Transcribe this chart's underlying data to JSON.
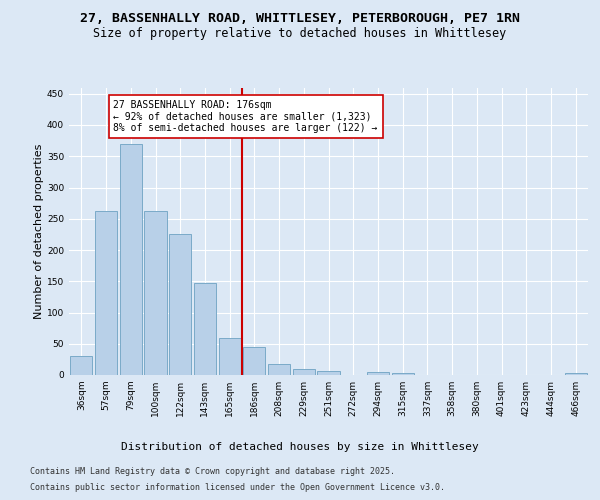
{
  "title_line1": "27, BASSENHALLY ROAD, WHITTLESEY, PETERBOROUGH, PE7 1RN",
  "title_line2": "Size of property relative to detached houses in Whittlesey",
  "xlabel": "Distribution of detached houses by size in Whittlesey",
  "ylabel": "Number of detached properties",
  "categories": [
    "36sqm",
    "57sqm",
    "79sqm",
    "100sqm",
    "122sqm",
    "143sqm",
    "165sqm",
    "186sqm",
    "208sqm",
    "229sqm",
    "251sqm",
    "272sqm",
    "294sqm",
    "315sqm",
    "337sqm",
    "358sqm",
    "380sqm",
    "401sqm",
    "423sqm",
    "444sqm",
    "466sqm"
  ],
  "values": [
    30,
    262,
    370,
    262,
    226,
    148,
    60,
    45,
    18,
    10,
    7,
    0,
    5,
    3,
    0,
    0,
    0,
    0,
    0,
    0,
    4
  ],
  "bar_color": "#b8d0e8",
  "bar_edge_color": "#7aaac8",
  "vline_x_pos": 6.5,
  "vline_color": "#cc0000",
  "annotation_text": "27 BASSENHALLY ROAD: 176sqm\n← 92% of detached houses are smaller (1,323)\n8% of semi-detached houses are larger (122) →",
  "annotation_box_color": "#ffffff",
  "annotation_box_edge_color": "#cc0000",
  "ylim": [
    0,
    460
  ],
  "yticks": [
    0,
    50,
    100,
    150,
    200,
    250,
    300,
    350,
    400,
    450
  ],
  "background_color": "#dce8f5",
  "plot_bg_color": "#dce8f5",
  "grid_color": "#ffffff",
  "footer_line1": "Contains HM Land Registry data © Crown copyright and database right 2025.",
  "footer_line2": "Contains public sector information licensed under the Open Government Licence v3.0.",
  "title_fontsize": 9.5,
  "subtitle_fontsize": 8.5,
  "axis_label_fontsize": 8,
  "tick_fontsize": 6.5,
  "annotation_fontsize": 7,
  "footer_fontsize": 6
}
